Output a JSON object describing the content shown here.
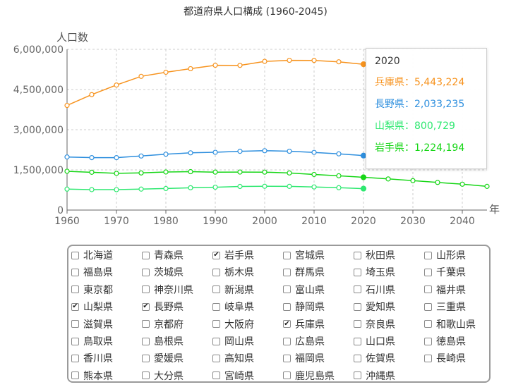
{
  "chart_data": {
    "type": "line",
    "title": "都道府県人口構成 (1960-2045)",
    "ylabel": "人口数",
    "xlabel": "年",
    "x": [
      1960,
      1965,
      1970,
      1975,
      1980,
      1985,
      1990,
      1995,
      2000,
      2005,
      2010,
      2015,
      2020,
      2025,
      2030,
      2035,
      2040,
      2045
    ],
    "x_ticks": [
      "1960",
      "1970",
      "1980",
      "1990",
      "2000",
      "2010",
      "2020",
      "2030",
      "2040"
    ],
    "y_ticks": [
      "0",
      "1,500,000",
      "3,000,000",
      "4,500,000",
      "6,000,000"
    ],
    "ylim": [
      0,
      6000000
    ],
    "grid": true,
    "series": [
      {
        "name": "兵庫県",
        "color": "#f7931e",
        "values": [
          3906487,
          4309944,
          4667928,
          4992140,
          5144892,
          5278050,
          5405040,
          5401877,
          5550574,
          5590601,
          5588133,
          5534800,
          5443224,
          null,
          null,
          null,
          null,
          null
        ]
      },
      {
        "name": "長野県",
        "color": "#2e8fde",
        "values": [
          1981433,
          1958007,
          1956917,
          2017564,
          2083934,
          2136927,
          2156627,
          2193984,
          2215168,
          2196114,
          2152449,
          2098804,
          2033235,
          null,
          null,
          null,
          null,
          null
        ]
      },
      {
        "name": "山梨県",
        "color": "#2ee870",
        "values": [
          782062,
          763194,
          762029,
          783050,
          804256,
          832832,
          852966,
          881996,
          888172,
          884515,
          863075,
          834930,
          800729,
          null,
          null,
          null,
          null,
          null
        ]
      },
      {
        "name": "岩手県",
        "color": "#16d616",
        "values": [
          1448517,
          1411118,
          1371383,
          1385563,
          1421927,
          1433611,
          1416928,
          1419505,
          1416180,
          1385041,
          1330147,
          1279594,
          1224194,
          1162000,
          1098000,
          1032000,
          965000,
          885000
        ]
      }
    ]
  },
  "tooltip": {
    "title": "2020",
    "rows": [
      {
        "label": "兵庫県：5,443,224",
        "color": "#f7931e"
      },
      {
        "label": "長野県：2,033,235",
        "color": "#2e8fde"
      },
      {
        "label": "山梨県：800,729",
        "color": "#2ee870"
      },
      {
        "label": "岩手県：1,224,194",
        "color": "#16d616"
      }
    ]
  },
  "prefectures": [
    {
      "name": "北海道",
      "checked": false
    },
    {
      "name": "青森県",
      "checked": false
    },
    {
      "name": "岩手県",
      "checked": true
    },
    {
      "name": "宮城県",
      "checked": false
    },
    {
      "name": "秋田県",
      "checked": false
    },
    {
      "name": "山形県",
      "checked": false
    },
    {
      "name": "福島県",
      "checked": false
    },
    {
      "name": "茨城県",
      "checked": false
    },
    {
      "name": "栃木県",
      "checked": false
    },
    {
      "name": "群馬県",
      "checked": false
    },
    {
      "name": "埼玉県",
      "checked": false
    },
    {
      "name": "千葉県",
      "checked": false
    },
    {
      "name": "東京都",
      "checked": false
    },
    {
      "name": "神奈川県",
      "checked": false
    },
    {
      "name": "新潟県",
      "checked": false
    },
    {
      "name": "富山県",
      "checked": false
    },
    {
      "name": "石川県",
      "checked": false
    },
    {
      "name": "福井県",
      "checked": false
    },
    {
      "name": "山梨県",
      "checked": true
    },
    {
      "name": "長野県",
      "checked": true
    },
    {
      "name": "岐阜県",
      "checked": false
    },
    {
      "name": "静岡県",
      "checked": false
    },
    {
      "name": "愛知県",
      "checked": false
    },
    {
      "name": "三重県",
      "checked": false
    },
    {
      "name": "滋賀県",
      "checked": false
    },
    {
      "name": "京都府",
      "checked": false
    },
    {
      "name": "大阪府",
      "checked": false
    },
    {
      "name": "兵庫県",
      "checked": true
    },
    {
      "name": "奈良県",
      "checked": false
    },
    {
      "name": "和歌山県",
      "checked": false
    },
    {
      "name": "鳥取県",
      "checked": false
    },
    {
      "name": "島根県",
      "checked": false
    },
    {
      "name": "岡山県",
      "checked": false
    },
    {
      "name": "広島県",
      "checked": false
    },
    {
      "name": "山口県",
      "checked": false
    },
    {
      "name": "徳島県",
      "checked": false
    },
    {
      "name": "香川県",
      "checked": false
    },
    {
      "name": "愛媛県",
      "checked": false
    },
    {
      "name": "高知県",
      "checked": false
    },
    {
      "name": "福岡県",
      "checked": false
    },
    {
      "name": "佐賀県",
      "checked": false
    },
    {
      "name": "長崎県",
      "checked": false
    },
    {
      "name": "熊本県",
      "checked": false
    },
    {
      "name": "大分県",
      "checked": false
    },
    {
      "name": "宮崎県",
      "checked": false
    },
    {
      "name": "鹿児島県",
      "checked": false
    },
    {
      "name": "沖縄県",
      "checked": false
    }
  ]
}
